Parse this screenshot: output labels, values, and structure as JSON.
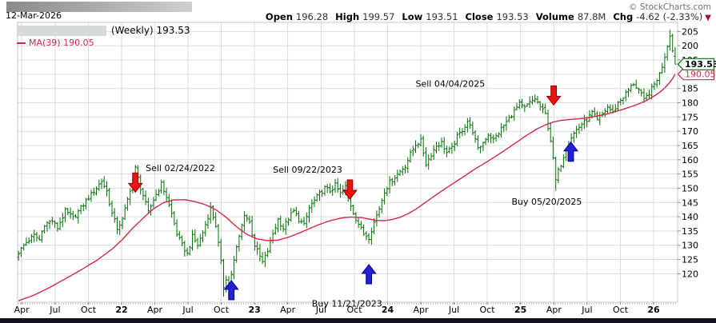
{
  "header": {
    "date": "12-Mar-2026",
    "copyright": "© StockCharts.com",
    "ohlc": [
      {
        "label": "Open",
        "value": "196.28"
      },
      {
        "label": "High",
        "value": "199.57"
      },
      {
        "label": "Low",
        "value": "193.51"
      },
      {
        "label": "Close",
        "value": "193.53"
      },
      {
        "label": "Volume",
        "value": "87.8M"
      },
      {
        "label": "Chg",
        "value": "-4.62 (-2.33%)"
      }
    ],
    "chg_triangle": "▼"
  },
  "legend": {
    "series": "(Weekly) 193.53",
    "ma": "MA(39) 190.05"
  },
  "chart_data": {
    "type": "ohlc",
    "title": "",
    "xlabel": "",
    "ylabel": "",
    "grid": true,
    "legend_position": "top-left",
    "timeframe": "weekly",
    "num_weeks": 254,
    "ylim": [
      110,
      208.2
    ],
    "y_ticks": [
      120,
      125,
      130,
      135,
      140,
      145,
      150,
      155,
      160,
      165,
      170,
      175,
      180,
      185,
      190,
      195,
      200,
      205
    ],
    "x_ticks": [
      {
        "label": "Apr",
        "week": 1.2
      },
      {
        "label": "Jul",
        "week": 14.1
      },
      {
        "label": "Oct",
        "week": 26.9
      },
      {
        "label": "22",
        "week": 39.7,
        "bold": true
      },
      {
        "label": "Apr",
        "week": 52.5
      },
      {
        "label": "Jul",
        "week": 65.3
      },
      {
        "label": "Oct",
        "week": 78.1
      },
      {
        "label": "23",
        "week": 90.9,
        "bold": true
      },
      {
        "label": "Apr",
        "week": 103.7
      },
      {
        "label": "Jul",
        "week": 116.6
      },
      {
        "label": "Oct",
        "week": 129.4
      },
      {
        "label": "24",
        "week": 142.2,
        "bold": true
      },
      {
        "label": "Apr",
        "week": 155.0
      },
      {
        "label": "Jul",
        "week": 167.8
      },
      {
        "label": "Oct",
        "week": 180.6
      },
      {
        "label": "25",
        "week": 193.4,
        "bold": true
      },
      {
        "label": "Apr",
        "week": 206.3
      },
      {
        "label": "Jul",
        "week": 219.1
      },
      {
        "label": "Oct",
        "week": 231.9
      },
      {
        "label": "26",
        "week": 244.7,
        "bold": true
      }
    ],
    "close_anchors": [
      [
        0,
        127.5
      ],
      [
        3,
        131
      ],
      [
        6,
        133.5
      ],
      [
        8,
        132
      ],
      [
        10,
        137.5
      ],
      [
        13,
        138.5
      ],
      [
        15,
        136
      ],
      [
        18,
        142
      ],
      [
        21,
        139.5
      ],
      [
        24,
        143
      ],
      [
        26,
        145.5
      ],
      [
        29,
        149
      ],
      [
        32,
        152.5
      ],
      [
        34,
        149
      ],
      [
        36,
        141
      ],
      [
        38,
        136
      ],
      [
        40,
        139
      ],
      [
        42,
        146
      ],
      [
        45,
        157
      ],
      [
        47,
        150
      ],
      [
        48,
        147.5
      ],
      [
        50,
        141.5
      ],
      [
        52,
        146
      ],
      [
        55,
        151.5
      ],
      [
        57,
        147
      ],
      [
        59,
        141
      ],
      [
        61,
        134
      ],
      [
        63,
        130
      ],
      [
        65,
        127
      ],
      [
        67,
        133
      ],
      [
        69,
        130
      ],
      [
        71,
        134.5
      ],
      [
        74,
        143
      ],
      [
        76,
        137
      ],
      [
        78,
        124
      ],
      [
        79,
        115.5
      ],
      [
        80,
        118.5
      ],
      [
        81,
        114.5
      ],
      [
        82,
        120
      ],
      [
        84,
        129
      ],
      [
        86,
        137
      ],
      [
        87,
        141
      ],
      [
        89,
        138
      ],
      [
        91,
        130
      ],
      [
        93,
        126
      ],
      [
        94,
        124
      ],
      [
        96,
        128
      ],
      [
        98,
        134
      ],
      [
        100,
        139
      ],
      [
        102,
        136
      ],
      [
        104,
        139.5
      ],
      [
        106,
        142
      ],
      [
        108,
        139
      ],
      [
        110,
        137
      ],
      [
        112,
        143
      ],
      [
        115,
        147
      ],
      [
        118,
        150
      ],
      [
        120,
        149
      ],
      [
        122,
        151
      ],
      [
        124,
        148
      ],
      [
        126,
        150.5
      ],
      [
        127,
        146.5
      ],
      [
        129,
        141.5
      ],
      [
        131,
        137.5
      ],
      [
        133,
        134
      ],
      [
        135,
        132.8
      ],
      [
        137,
        138
      ],
      [
        139,
        143
      ],
      [
        141,
        149
      ],
      [
        143,
        152
      ],
      [
        145,
        154
      ],
      [
        147,
        156
      ],
      [
        149,
        158
      ],
      [
        151,
        162
      ],
      [
        153,
        165.5
      ],
      [
        155,
        166.5
      ],
      [
        157,
        158.5
      ],
      [
        159,
        162
      ],
      [
        161,
        165
      ],
      [
        163,
        166
      ],
      [
        165,
        162.5
      ],
      [
        167,
        164
      ],
      [
        169,
        168
      ],
      [
        171,
        170.5
      ],
      [
        173,
        173.5
      ],
      [
        175,
        170
      ],
      [
        177,
        163.5
      ],
      [
        179,
        166
      ],
      [
        181,
        169
      ],
      [
        183,
        167
      ],
      [
        185,
        169.5
      ],
      [
        187,
        172
      ],
      [
        189,
        174.5
      ],
      [
        191,
        177
      ],
      [
        193,
        179.5
      ],
      [
        195,
        178
      ],
      [
        197,
        180
      ],
      [
        199,
        181.5
      ],
      [
        201,
        178.5
      ],
      [
        203,
        176
      ],
      [
        205,
        167
      ],
      [
        206,
        160
      ],
      [
        207,
        152.8
      ],
      [
        208,
        156
      ],
      [
        209,
        158.5
      ],
      [
        211,
        164
      ],
      [
        213,
        168
      ],
      [
        215,
        170.5
      ],
      [
        217,
        172.5
      ],
      [
        219,
        174
      ],
      [
        221,
        176.5
      ],
      [
        223,
        173.8
      ],
      [
        225,
        176
      ],
      [
        227,
        178.5
      ],
      [
        229,
        176.5
      ],
      [
        231,
        180
      ],
      [
        233,
        182
      ],
      [
        235,
        184.5
      ],
      [
        237,
        186.8
      ],
      [
        239,
        184.5
      ],
      [
        241,
        180.8
      ],
      [
        243,
        183.5
      ],
      [
        245,
        186.5
      ],
      [
        247,
        190
      ],
      [
        249,
        196
      ],
      [
        251,
        203.5
      ],
      [
        252,
        198.2
      ],
      [
        253,
        193.53
      ]
    ],
    "ma_anchors": [
      [
        0,
        110.5
      ],
      [
        6,
        112.5
      ],
      [
        12,
        115.2
      ],
      [
        18,
        118.2
      ],
      [
        24,
        121.3
      ],
      [
        30,
        124.6
      ],
      [
        36,
        128.6
      ],
      [
        40,
        132
      ],
      [
        44,
        136
      ],
      [
        48,
        139.5
      ],
      [
        52,
        142.8
      ],
      [
        56,
        145
      ],
      [
        60,
        145.9
      ],
      [
        64,
        146
      ],
      [
        68,
        145.3
      ],
      [
        72,
        144.2
      ],
      [
        76,
        142.5
      ],
      [
        80,
        139.8
      ],
      [
        84,
        136.5
      ],
      [
        88,
        133.8
      ],
      [
        92,
        132.2
      ],
      [
        96,
        131.6
      ],
      [
        100,
        131.8
      ],
      [
        104,
        132.8
      ],
      [
        108,
        134.2
      ],
      [
        112,
        135.8
      ],
      [
        116,
        137.3
      ],
      [
        120,
        138.6
      ],
      [
        124,
        139.5
      ],
      [
        128,
        139.9
      ],
      [
        132,
        139.7
      ],
      [
        135,
        139.2
      ],
      [
        138,
        138.7
      ],
      [
        141,
        138.6
      ],
      [
        144,
        139
      ],
      [
        147,
        139.8
      ],
      [
        150,
        141
      ],
      [
        153,
        142.6
      ],
      [
        156,
        144.5
      ],
      [
        160,
        147.1
      ],
      [
        164,
        149.6
      ],
      [
        168,
        152
      ],
      [
        172,
        154.4
      ],
      [
        176,
        156.8
      ],
      [
        180,
        159
      ],
      [
        184,
        161.3
      ],
      [
        188,
        163.7
      ],
      [
        192,
        166.2
      ],
      [
        196,
        168.7
      ],
      [
        200,
        170.9
      ],
      [
        203,
        172.2
      ],
      [
        206,
        173.2
      ],
      [
        209,
        173.8
      ],
      [
        212,
        174.1
      ],
      [
        215,
        174.3
      ],
      [
        218,
        174.6
      ],
      [
        221,
        175
      ],
      [
        224,
        175.5
      ],
      [
        227,
        176.1
      ],
      [
        230,
        176.9
      ],
      [
        233,
        177.7
      ],
      [
        236,
        178.6
      ],
      [
        239,
        179.6
      ],
      [
        242,
        180.8
      ],
      [
        245,
        182.4
      ],
      [
        247,
        183.6
      ],
      [
        249,
        185.2
      ],
      [
        251,
        187.2
      ],
      [
        252,
        188.5
      ],
      [
        253,
        190.05
      ]
    ],
    "forced_lows": {
      "79": 112.0,
      "81": 111.2,
      "135": 130.5,
      "207": 149.1
    },
    "forced_highs": {
      "45": 158.2,
      "251": 205.6
    },
    "last_bar": {
      "open": 196.28,
      "high": 199.57,
      "low": 193.51,
      "close": 193.53
    },
    "ma_last_value": 190.05,
    "callouts": [
      {
        "text": "190.05",
        "price": 190.05,
        "kind": "ma"
      },
      {
        "text": "193.53",
        "price": 193.53,
        "kind": "last"
      }
    ],
    "annotations": {
      "arrows": [
        {
          "dir": "sell",
          "week": 45.0,
          "tip_price": 148.6
        },
        {
          "dir": "buy",
          "week": 82.0,
          "tip_price": 117.6
        },
        {
          "dir": "sell",
          "week": 127.7,
          "tip_price": 146.2
        },
        {
          "dir": "buy",
          "week": 135.0,
          "tip_price": 123.2
        },
        {
          "dir": "sell",
          "week": 206.2,
          "tip_price": 179.2
        },
        {
          "dir": "buy",
          "week": 212.8,
          "tip_price": 166.2
        }
      ],
      "labels": [
        {
          "text": "Sell 02/24/2022",
          "week": 49.0,
          "price": 157.2
        },
        {
          "text": "Sell 09/22/2023",
          "week": 98.0,
          "price": 156.6
        },
        {
          "text": "Sell 04/04/2025",
          "week": 153.0,
          "price": 186.8
        },
        {
          "text": "Buy 11/21/2023",
          "week": 113.0,
          "price": 109.6
        },
        {
          "text": "Buy 05/20/2025",
          "week": 190.0,
          "price": 145.4
        }
      ]
    }
  },
  "colors": {
    "bars": "#057005",
    "ma_line": "#d62849",
    "arrow_sell": "#ee1111",
    "arrow_sell_border": "#900000",
    "arrow_buy": "#251fd8",
    "arrow_buy_border": "#000080",
    "grid": "#dcdcdc",
    "plot_border": "#c4c4c4",
    "axis_text": "#000000",
    "callout_last_border": "#067106",
    "callout_last_text": "#000000",
    "callout_ma_border": "#d62849",
    "callout_ma_text": "#d62849",
    "redaction_from": "#8a8a8a",
    "redaction_to": "#cfcfcf",
    "ticker_box": "#d6dad6",
    "bottom_bar": "#101020",
    "chg_triangle": "#b00038"
  }
}
